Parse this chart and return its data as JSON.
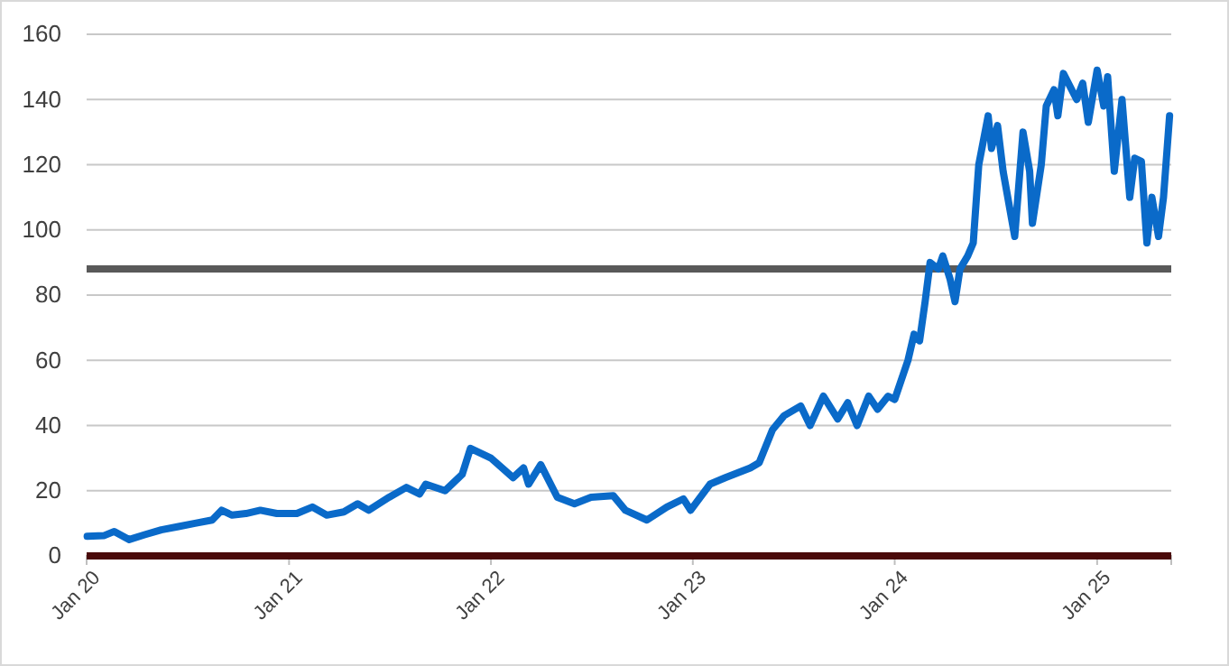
{
  "chart_data": {
    "type": "line",
    "x": [
      "2020-01-02",
      "2020-02-01",
      "2020-02-20",
      "2020-03-18",
      "2020-04-15",
      "2020-05-15",
      "2020-06-15",
      "2020-07-15",
      "2020-08-15",
      "2020-09-01",
      "2020-09-20",
      "2020-10-15",
      "2020-11-10",
      "2020-12-10",
      "2021-01-15",
      "2021-02-12",
      "2021-03-10",
      "2021-04-10",
      "2021-05-05",
      "2021-05-25",
      "2021-07-01",
      "2021-08-01",
      "2021-08-25",
      "2021-09-05",
      "2021-10-10",
      "2021-11-10",
      "2021-11-25",
      "2022-01-01",
      "2022-02-10",
      "2022-03-01",
      "2022-03-10",
      "2022-04-01",
      "2022-05-01",
      "2022-06-01",
      "2022-07-01",
      "2022-08-10",
      "2022-09-01",
      "2022-10-10",
      "2022-11-15",
      "2022-12-15",
      "2022-12-28",
      "2023-02-01",
      "2023-03-01",
      "2023-04-15",
      "2023-05-01",
      "2023-05-25",
      "2023-06-15",
      "2023-07-15",
      "2023-08-01",
      "2023-08-25",
      "2023-09-20",
      "2023-10-08",
      "2023-10-25",
      "2023-11-15",
      "2023-12-01",
      "2023-12-20",
      "2024-01-01",
      "2024-01-25",
      "2024-02-05",
      "2024-02-15",
      "2024-02-25",
      "2024-03-05",
      "2024-03-20",
      "2024-03-28",
      "2024-04-10",
      "2024-04-19",
      "2024-04-28",
      "2024-05-12",
      "2024-05-22",
      "2024-06-01",
      "2024-06-18",
      "2024-06-24",
      "2024-07-05",
      "2024-07-15",
      "2024-08-05",
      "2024-08-20",
      "2024-09-01",
      "2024-09-06",
      "2024-09-22",
      "2024-10-01",
      "2024-10-15",
      "2024-10-22",
      "2024-11-01",
      "2024-11-25",
      "2024-12-06",
      "2024-12-16",
      "2025-01-01",
      "2025-01-13",
      "2025-01-20",
      "2025-02-01",
      "2025-02-15",
      "2025-03-01",
      "2025-03-10",
      "2025-03-22",
      "2025-04-01",
      "2025-04-10",
      "2025-04-22",
      "2025-05-01",
      "2025-05-12"
    ],
    "series": [
      {
        "color": "#0a6ac9",
        "values": [
          6,
          6.2,
          7.5,
          5,
          6.5,
          8,
          9,
          10,
          11,
          14,
          12.5,
          13,
          14,
          13,
          13,
          15,
          12.5,
          13.5,
          16,
          14,
          18,
          21,
          19,
          22,
          20,
          25,
          33,
          30,
          24,
          27,
          22,
          28,
          18,
          16,
          18,
          18.5,
          14,
          11,
          15,
          17.5,
          14,
          22,
          24,
          27,
          28.6,
          38.7,
          43,
          46,
          40,
          49,
          42,
          47,
          40,
          49,
          45,
          49,
          48,
          60,
          68,
          66,
          78,
          90,
          88,
          92,
          85,
          78,
          88,
          92,
          96,
          120,
          135,
          125,
          132,
          118,
          98,
          130,
          118,
          102,
          120,
          138,
          143,
          135,
          148,
          140,
          145,
          133,
          149,
          138,
          147,
          118,
          140,
          110,
          122,
          121,
          96,
          110,
          98,
          110,
          135
        ]
      }
    ],
    "xlim": [
      "2020-01-01",
      "2025-05-15"
    ],
    "xticks": [
      {
        "value": "2020-01-01",
        "label": "Jan 20"
      },
      {
        "value": "2021-01-01",
        "label": "Jan 21"
      },
      {
        "value": "2022-01-01",
        "label": "Jan 22"
      },
      {
        "value": "2023-01-01",
        "label": "Jan 23"
      },
      {
        "value": "2024-01-01",
        "label": "Jan 24"
      },
      {
        "value": "2025-01-01",
        "label": "Jan 25"
      }
    ],
    "ylim": [
      0,
      160
    ],
    "yticks": [
      0,
      20,
      40,
      60,
      80,
      100,
      120,
      140,
      160
    ],
    "grid": "y",
    "marker": "none",
    "line_style": "solid",
    "ref_lines": [
      {
        "axis": "y",
        "value": 88,
        "color": "#595959"
      },
      {
        "axis": "y",
        "value": 0,
        "color": "#4a0a0a"
      }
    ]
  }
}
